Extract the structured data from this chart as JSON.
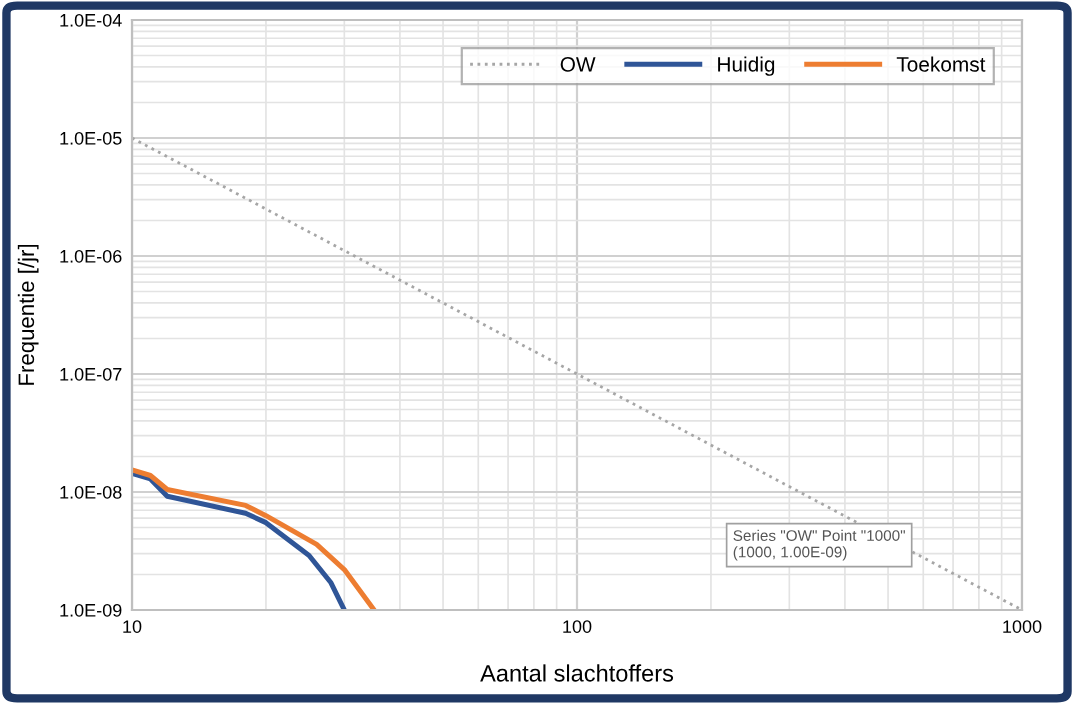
{
  "chart_data": {
    "type": "line",
    "xlabel": "Aantal slachtoffers",
    "ylabel": "Frequentie [/jr]",
    "log": "xy",
    "grid": true,
    "legend": "top right",
    "xlim": [
      10,
      1000
    ],
    "xticks": [
      10,
      100,
      1000
    ],
    "ylim": [
      1e-09,
      0.0001
    ],
    "yticks": [
      {
        "value": 1e-09,
        "label": "1.0E-09"
      },
      {
        "value": 1e-08,
        "label": "1.0E-08"
      },
      {
        "value": 1e-07,
        "label": "1.0E-07"
      },
      {
        "value": 1e-06,
        "label": "1.0E-06"
      },
      {
        "value": 1e-05,
        "label": "1.0E-05"
      },
      {
        "value": 0.0001,
        "label": "1.0E-04"
      }
    ],
    "series": [
      {
        "name": "OW",
        "color": "#a6a6a6",
        "line_style": "dotted",
        "x": [
          10,
          1000
        ],
        "values": [
          1e-05,
          1e-09
        ]
      },
      {
        "name": "Huidig",
        "color": "#2f5597",
        "line_style": "solid",
        "x": [
          10,
          11,
          12,
          18,
          20,
          25,
          28,
          30
        ],
        "values": [
          1.44e-08,
          1.29e-08,
          9.2e-09,
          6.6e-09,
          5.5e-09,
          2.9e-09,
          1.7e-09,
          1e-09
        ]
      },
      {
        "name": "Toekomst",
        "color": "#ed7d31",
        "line_style": "solid",
        "x": [
          10,
          11,
          12,
          18,
          20,
          26,
          30,
          35
        ],
        "values": [
          1.54e-08,
          1.38e-08,
          1.05e-08,
          7.7e-09,
          6.3e-09,
          3.6e-09,
          2.2e-09,
          1e-09
        ]
      }
    ],
    "annotations": [
      "Series \"OW\" Point \"1000\"\n(1000, 1.00E-09)"
    ]
  }
}
